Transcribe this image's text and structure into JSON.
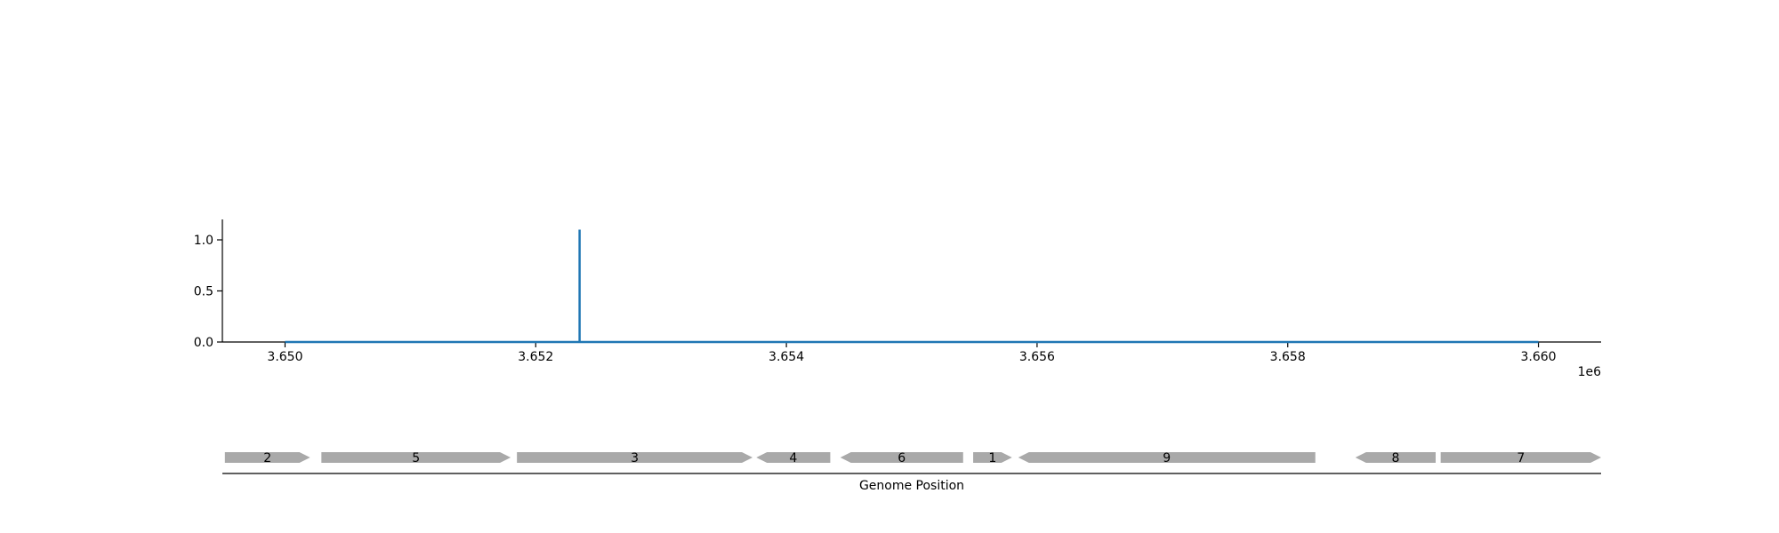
{
  "chart_data": [
    {
      "type": "line",
      "xlim": [
        3649500,
        3660500
      ],
      "ylim": [
        0,
        1.2
      ],
      "x_ticks": [
        3650000,
        3652000,
        3654000,
        3656000,
        3658000,
        3660000
      ],
      "x_tick_labels": [
        "3.650",
        "3.652",
        "3.654",
        "3.656",
        "3.658",
        "3.660"
      ],
      "x_offset_label": "1e6",
      "y_ticks": [
        0.0,
        0.5,
        1.0
      ],
      "y_tick_labels": [
        "0.0",
        "0.5",
        "1.0"
      ],
      "series_color": "#1f77b4",
      "series": [
        {
          "x": [
            3650000,
            3652350,
            3652350,
            3652350,
            3660000
          ],
          "y": [
            0,
            0,
            1.1,
            0,
            0
          ]
        }
      ]
    },
    {
      "type": "gene-track",
      "xlabel": "Genome Position",
      "gene_color": "#a9a9a9",
      "genes": [
        {
          "label": "2",
          "start": 3649520,
          "end": 3650200,
          "strand": "+"
        },
        {
          "label": "5",
          "start": 3650290,
          "end": 3651800,
          "strand": "+"
        },
        {
          "label": "3",
          "start": 3651850,
          "end": 3653730,
          "strand": "+"
        },
        {
          "label": "4",
          "start": 3653760,
          "end": 3654350,
          "strand": "-"
        },
        {
          "label": "6",
          "start": 3654430,
          "end": 3655410,
          "strand": "-"
        },
        {
          "label": "1",
          "start": 3655490,
          "end": 3655800,
          "strand": "+"
        },
        {
          "label": "9",
          "start": 3655850,
          "end": 3658220,
          "strand": "-"
        },
        {
          "label": "8",
          "start": 3658540,
          "end": 3659180,
          "strand": "-"
        },
        {
          "label": "7",
          "start": 3659220,
          "end": 3660500,
          "strand": "+"
        }
      ]
    }
  ]
}
